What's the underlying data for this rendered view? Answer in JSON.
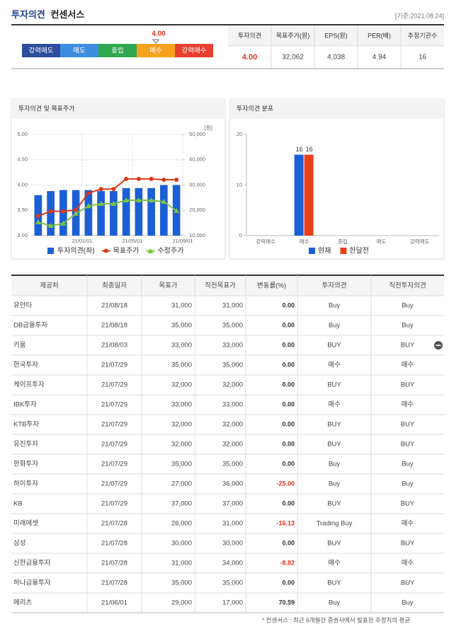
{
  "header": {
    "title": [
      "투자의견",
      "컨센서스"
    ],
    "date": "[기준:2021.08.24]"
  },
  "opinion_scale": {
    "labels": [
      "강력매도",
      "매도",
      "중립",
      "매수",
      "강력매수"
    ],
    "colors": [
      "#2d4e9c",
      "#3f8de0",
      "#2fa84f",
      "#f7a21f",
      "#e8402f"
    ],
    "xlim": [
      1,
      5
    ],
    "value": 4,
    "value_label": "4.00"
  },
  "summary": {
    "headers": [
      "투자의견",
      "목표주가(원)",
      "EPS(원)",
      "PER(배)",
      "추정기관수"
    ],
    "values": [
      "4.00",
      "32,062",
      "4,038",
      "4.94",
      "16"
    ]
  },
  "chart_data": [
    {
      "type": "bar-line",
      "title": "투자의견 및 목표주가",
      "y2_label": "[원]",
      "categories": [
        null,
        null,
        null,
        null,
        null,
        null,
        null,
        null,
        null,
        null,
        null,
        null
      ],
      "xlim": [
        0,
        12
      ],
      "xticks": [
        {
          "value": 4,
          "label": "21/01/01"
        },
        {
          "value": 8,
          "label": "21/05/01"
        },
        {
          "value": 12,
          "label": "21/09/01"
        }
      ],
      "ylim": [
        3,
        5
      ],
      "yticks": [
        {
          "value": 3,
          "label": "3.00"
        },
        {
          "value": 3.5,
          "label": "3.50"
        },
        {
          "value": 4,
          "label": "4.00"
        },
        {
          "value": 4.5,
          "label": "4.50"
        },
        {
          "value": 5,
          "label": "5.00"
        }
      ],
      "y2lim": [
        10000,
        50000
      ],
      "y2ticks": [
        {
          "value": 10000,
          "label": "10,000"
        },
        {
          "value": 20000,
          "label": "20,000"
        },
        {
          "value": 30000,
          "label": "30,000"
        },
        {
          "value": 40000,
          "label": "40,000"
        },
        {
          "value": 50000,
          "label": "50,000"
        }
      ],
      "grid": true,
      "series": [
        {
          "name": "투자의견(좌)",
          "kind": "bar",
          "color": "#1a5fd6",
          "values": [
            3.8,
            3.88,
            3.9,
            3.9,
            3.9,
            3.88,
            3.88,
            3.94,
            3.94,
            3.94,
            4.0,
            4.0
          ]
        },
        {
          "name": "목표주가",
          "kind": "line",
          "marker": "circle",
          "axis": "y2",
          "color": "#d9381e",
          "values": [
            17800,
            19600,
            19600,
            20100,
            26800,
            28400,
            28400,
            32400,
            32400,
            32400,
            32100,
            32100
          ]
        },
        {
          "name": "수정주가",
          "kind": "line",
          "marker": "triangle",
          "axis": "y2",
          "color": "#7cc242",
          "values": [
            15300,
            13900,
            14800,
            18700,
            21700,
            22600,
            22600,
            24000,
            24000,
            24000,
            23400,
            19800
          ]
        }
      ]
    },
    {
      "type": "bar",
      "title": "투자의견 분포",
      "categories": [
        "강력매수",
        "매수",
        "중립",
        "매도",
        "강력매도"
      ],
      "ylim": [
        0,
        20
      ],
      "yticks": [
        0,
        10,
        20
      ],
      "grid": false,
      "series": [
        {
          "name": "현재",
          "color": "#1a5fd6",
          "values": [
            0,
            16,
            0,
            0,
            0
          ]
        },
        {
          "name": "한달전",
          "color": "#e8401c",
          "values": [
            0,
            16,
            0,
            0,
            0
          ]
        }
      ]
    }
  ],
  "table": {
    "headers": [
      "제공처",
      "최종일자",
      "목표가",
      "직전목표가",
      "변동률(%)",
      "투자의견",
      "직전투자의견"
    ],
    "rows": [
      [
        "유안타",
        "21/08/18",
        "31,000",
        "31,000",
        "0.00",
        "Buy",
        "Buy"
      ],
      [
        "DB금융투자",
        "21/08/18",
        "35,000",
        "35,000",
        "0.00",
        "Buy",
        "Buy"
      ],
      [
        "키움",
        "21/08/03",
        "33,000",
        "33,000",
        "0.00",
        "BUY",
        "BUY"
      ],
      [
        "한국투자",
        "21/07/29",
        "35,000",
        "35,000",
        "0.00",
        "매수",
        "매수"
      ],
      [
        "케이프투자",
        "21/07/29",
        "32,000",
        "32,000",
        "0.00",
        "BUY",
        "BUY"
      ],
      [
        "IBK투자",
        "21/07/29",
        "33,000",
        "33,000",
        "0.00",
        "매수",
        "매수"
      ],
      [
        "KTB투자",
        "21/07/29",
        "32,000",
        "32,000",
        "0.00",
        "BUY",
        "BUY"
      ],
      [
        "유진투자",
        "21/07/29",
        "32,000",
        "32,000",
        "0.00",
        "BUY",
        "BUY"
      ],
      [
        "한화투자",
        "21/07/29",
        "35,000",
        "35,000",
        "0.00",
        "Buy",
        "Buy"
      ],
      [
        "하이투자",
        "21/07/29",
        "27,000",
        "36,000",
        "-25.00",
        "Buy",
        "Buy"
      ],
      [
        "KB",
        "21/07/29",
        "37,000",
        "37,000",
        "0.00",
        "BUY",
        "BUY"
      ],
      [
        "미래에셋",
        "21/07/28",
        "26,000",
        "31,000",
        "-16.13",
        "Trading Buy",
        "매수"
      ],
      [
        "삼성",
        "21/07/28",
        "30,000",
        "30,000",
        "0.00",
        "BUY",
        "BUY"
      ],
      [
        "신한금융투자",
        "21/07/28",
        "31,000",
        "34,000",
        "-8.82",
        "매수",
        "매수"
      ],
      [
        "하나금융투자",
        "21/07/28",
        "35,000",
        "35,000",
        "0.00",
        "BUY",
        "BUY"
      ],
      [
        "메리츠",
        "21/06/01",
        "29,000",
        "17,000",
        "70.59",
        "Buy",
        "Buy"
      ]
    ]
  },
  "footnote": "* 컨센서스 : 최근 6개월간 증권사에서 발표한 추정치의 평균"
}
